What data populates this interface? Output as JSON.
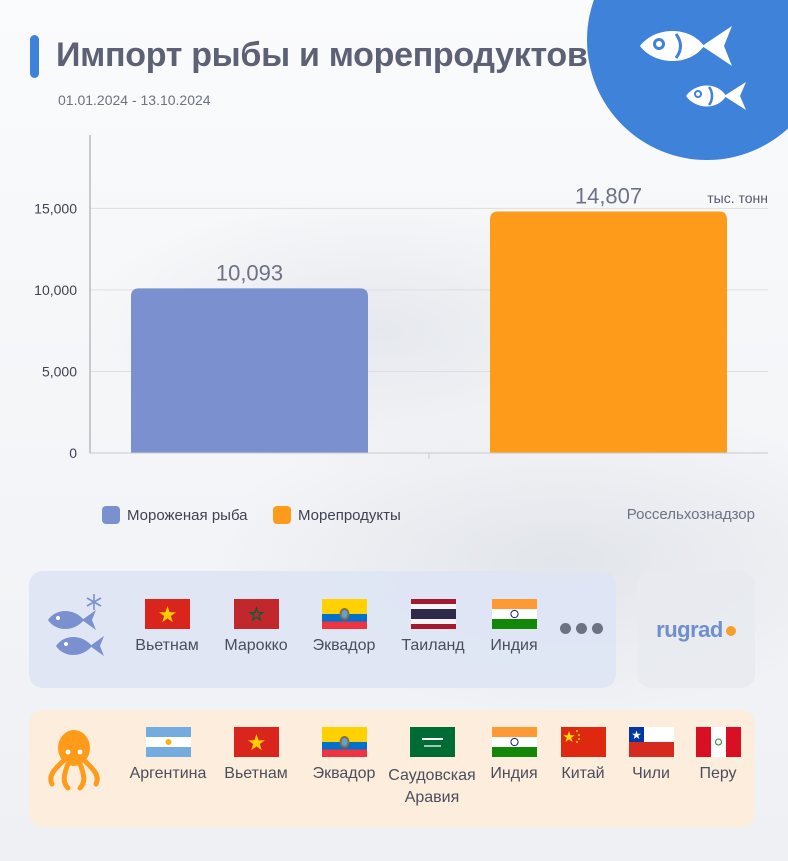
{
  "header": {
    "title": "Импорт рыбы и морепродуктов",
    "date_range": "01.01.2024 - 13.10.2024"
  },
  "chart_data": {
    "type": "bar",
    "categories": [
      "Мороженая рыба",
      "Морепродукты"
    ],
    "values": [
      10093,
      14807
    ],
    "value_labels": [
      "10,093",
      "14,807"
    ],
    "colors": [
      "#7b90cf",
      "#ff9b1a"
    ],
    "unit": "тыс. тонн",
    "yticks": [
      0,
      5000,
      10000,
      15000
    ],
    "ytick_labels": [
      "0",
      "5,000",
      "10,000",
      "15,000"
    ],
    "ylim": [
      0,
      19500
    ],
    "grid": true,
    "legend_placement": "bottom-left"
  },
  "legend": [
    {
      "label": "Мороженая рыба",
      "color": "#7b90cf"
    },
    {
      "label": "Морепродукты",
      "color": "#ff9b1a"
    }
  ],
  "source": "Россельхознадзор",
  "frozen_fish": {
    "icon": "fish-snowflake-icon",
    "countries": [
      "Вьетнам",
      "Марокко",
      "Эквадор",
      "Таиланд",
      "Индия"
    ],
    "more_icon": "ellipsis-icon"
  },
  "seafood": {
    "icon": "octopus-icon",
    "countries": [
      "Аргентина",
      "Вьетнам",
      "Эквадор",
      "Саудовская Аравия",
      "Индия",
      "Китай",
      "Чили",
      "Перу"
    ]
  },
  "brand": {
    "name": "rugrad"
  },
  "colors": {
    "accent": "#3f82da",
    "frozen": "#7b90cf",
    "seafood": "#ff9b1a"
  }
}
